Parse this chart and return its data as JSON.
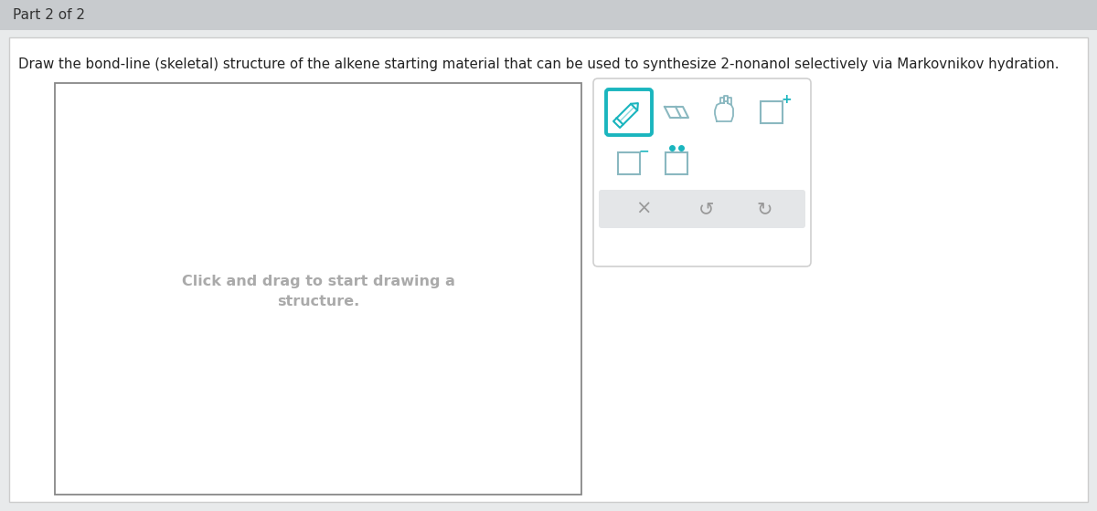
{
  "page_bg": "#e8eaeb",
  "header_bg": "#c8cbce",
  "white": "#ffffff",
  "card_border": "#cccccc",
  "header_text": "Part 2 of 2",
  "question_text": "Draw the bond-line (skeletal) structure of the alkene starting material that can be used to synthesize 2-nonanol selectively via Markovnikov hydration.",
  "placeholder_line1": "Click and drag to start drawing a",
  "placeholder_line2": "structure.",
  "placeholder_color": "#aaaaaa",
  "draw_box_edge": "#888888",
  "teal": "#1ab5be",
  "icon_color": "#8ab8c0",
  "icon_color2": "#9abfc7",
  "toolbar_border": "#d0d0d0",
  "bottom_bar_bg": "#e4e6e8",
  "action_color": "#999999",
  "plus_color": "#1ab5be",
  "minus_color": "#1ab5be"
}
